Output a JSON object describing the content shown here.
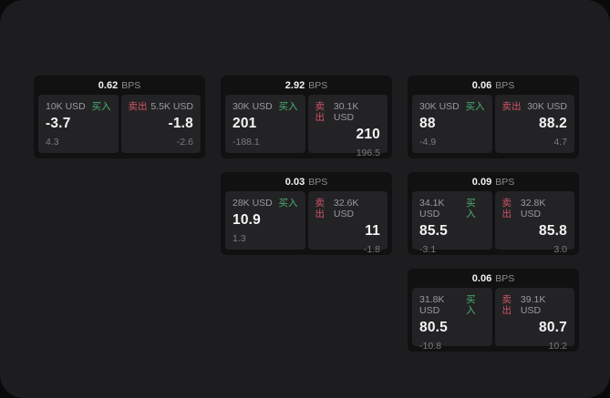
{
  "app": {
    "unit_label": "BPS",
    "buy_label": "买入",
    "sell_label": "卖出",
    "colors": {
      "buy_accent": "#4caf72",
      "sell_accent": "#cd5466",
      "page_background": "#0a0a0b",
      "window_background": "#1d1d1f",
      "card_background": "#111112",
      "panel_background": "#232325"
    }
  },
  "cards": [
    {
      "bps": "0.62",
      "buy": {
        "amount": "10K USD",
        "value": "-3.7",
        "delta": "4.3"
      },
      "sell": {
        "amount": "5.5K USD",
        "value": "-1.8",
        "delta": "-2.6"
      }
    },
    {
      "bps": "2.92",
      "buy": {
        "amount": "30K USD",
        "value": "201",
        "delta": "-188.1"
      },
      "sell": {
        "amount": "30.1K USD",
        "value": "210",
        "delta": "196.5"
      }
    },
    {
      "bps": "0.06",
      "buy": {
        "amount": "30K USD",
        "value": "88",
        "delta": "-4.9"
      },
      "sell": {
        "amount": "30K USD",
        "value": "88.2",
        "delta": "4.7"
      }
    },
    {
      "bps": "0.03",
      "buy": {
        "amount": "28K USD",
        "value": "10.9",
        "delta": "1.3"
      },
      "sell": {
        "amount": "32.6K USD",
        "value": "11",
        "delta": "-1.8"
      }
    },
    {
      "bps": "0.09",
      "buy": {
        "amount": "34.1K USD",
        "value": "85.5",
        "delta": "-3.1"
      },
      "sell": {
        "amount": "32.8K USD",
        "value": "85.8",
        "delta": "3.0"
      }
    },
    {
      "bps": "0.06",
      "buy": {
        "amount": "31.8K USD",
        "value": "80.5",
        "delta": "-10.8"
      },
      "sell": {
        "amount": "39.1K USD",
        "value": "80.7",
        "delta": "10.2"
      }
    }
  ]
}
